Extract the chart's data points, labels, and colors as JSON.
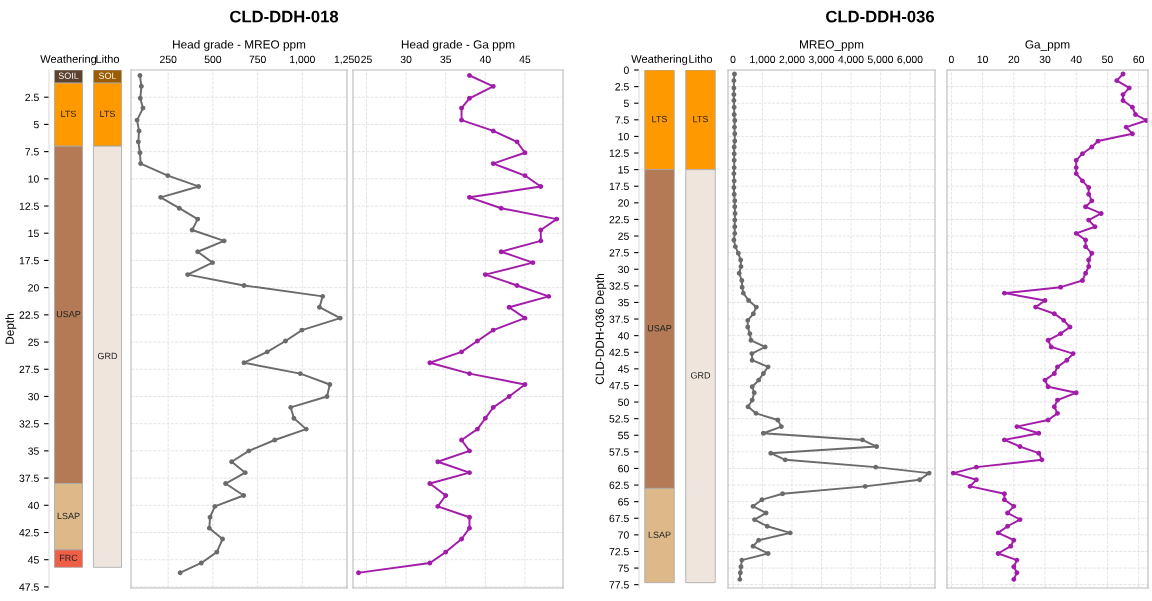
{
  "chart_data": [
    {
      "type": "bar",
      "stacked": true,
      "ylabel": "Depth",
      "categories": [
        "Weathering",
        "Litho"
      ],
      "ylim": [
        47.6,
        0
      ],
      "yticks": [
        2.5,
        5,
        7.5,
        10,
        12.5,
        15,
        17.5,
        20,
        22.5,
        25,
        27.5,
        30,
        32.5,
        35,
        37.5,
        40,
        42.5,
        45,
        47.5
      ],
      "series": [
        {
          "name": "SOIL",
          "color": "#5c4330",
          "values": [
            1.2,
            null
          ]
        },
        {
          "name": "SOL",
          "color": "#9c5c00",
          "values": [
            null,
            1.2
          ]
        },
        {
          "name": "LTS",
          "color": "#ff9900",
          "values": [
            5.8,
            5.8
          ]
        },
        {
          "name": "USAP",
          "color": "#b47a55",
          "values": [
            31,
            null
          ]
        },
        {
          "name": "GRD",
          "color": "#efe5df",
          "values": [
            null,
            38.7
          ]
        },
        {
          "name": "LSAP",
          "color": "#ddb98a",
          "values": [
            6.1,
            null
          ]
        },
        {
          "name": "FRC",
          "color": "#ef5f45",
          "values": [
            1.6,
            null
          ]
        }
      ]
    },
    {
      "type": "line",
      "orientation": "horizontal",
      "title": "CLD-DDH-018",
      "xlabel": "Head grade - MREO ppm",
      "xlim": [
        42,
        1250
      ],
      "xticks": [
        250,
        500,
        750,
        {
          "value": 1000,
          "label": "1,000"
        },
        {
          "value": 1250,
          "label": "1,250"
        }
      ],
      "ylim": [
        47.6,
        0
      ],
      "yticks": [
        2.5,
        5,
        7.5,
        10,
        12.5,
        15,
        17.5,
        20,
        22.5,
        25,
        27.5,
        30,
        32.5,
        35,
        37.5,
        40,
        42.5,
        45,
        47.5
      ],
      "tick_labels": "x",
      "grid": true,
      "marker": "circle",
      "line_style": "solid",
      "series": [
        {
          "color": "#6b6b6b",
          "x": [
            0.5,
            1.5,
            2.6,
            3.5,
            4.6,
            5.6,
            6.6,
            7.6,
            8.6,
            9.7,
            10.7,
            11.7,
            12.7,
            13.7,
            14.7,
            15.7,
            16.7,
            17.7,
            18.8,
            19.8,
            20.8,
            21.8,
            22.8,
            23.9,
            24.9,
            25.9,
            26.9,
            27.9,
            28.9,
            30.0,
            31.0,
            32.0,
            33.0,
            34.0,
            35.0,
            36.0,
            37.0,
            38.0,
            39.1,
            40.1,
            41.1,
            42.1,
            43.1,
            44.3,
            45.3,
            46.2
          ],
          "values": [
            92,
            100,
            94,
            109,
            76,
            87,
            83,
            92,
            96,
            248,
            420,
            208,
            312,
            415,
            384,
            563,
            415,
            498,
            359,
            674,
            1114,
            1096,
            1212,
            998,
            906,
            804,
            674,
            989,
            1154,
            1138,
            935,
            953,
            1022,
            846,
            701,
            605,
            681,
            571,
            672,
            511,
            484,
            480,
            554,
            522,
            435,
            317
          ]
        }
      ]
    },
    {
      "type": "line",
      "orientation": "horizontal",
      "xlabel": "Head grade - Ga ppm",
      "xlim": [
        23.3,
        49.8
      ],
      "xticks": [
        25,
        30,
        35,
        40,
        45
      ],
      "ylim": [
        47.6,
        0
      ],
      "yticks": [
        2.5,
        5,
        7.5,
        10,
        12.5,
        15,
        17.5,
        20,
        22.5,
        25,
        27.5,
        30,
        32.5,
        35,
        37.5,
        40,
        42.5,
        45,
        47.5
      ],
      "tick_labels": "x",
      "grid": true,
      "marker": "circle",
      "line_style": "solid",
      "series": [
        {
          "color": "#a21caa",
          "x": [
            0.5,
            1.5,
            2.6,
            3.5,
            4.6,
            5.6,
            6.6,
            7.6,
            8.6,
            9.7,
            10.7,
            11.7,
            12.7,
            13.7,
            14.7,
            15.7,
            16.7,
            17.7,
            18.8,
            19.8,
            20.8,
            21.8,
            22.8,
            23.9,
            24.9,
            25.9,
            26.9,
            27.9,
            28.9,
            30.0,
            31.0,
            32.0,
            33.0,
            34.0,
            35.0,
            36.0,
            37.0,
            38.0,
            39.1,
            40.1,
            41.1,
            42.1,
            43.1,
            44.3,
            45.3,
            46.2
          ],
          "values": [
            38,
            41,
            38,
            37,
            37,
            41,
            44,
            45,
            41,
            45,
            47,
            38,
            42,
            49,
            47,
            47,
            42,
            46,
            40,
            44,
            48,
            43,
            45,
            41,
            39,
            37,
            33,
            38,
            45,
            43,
            41,
            40,
            39,
            37,
            38,
            34,
            38,
            33,
            35,
            34,
            38,
            38,
            37,
            35,
            33,
            24
          ]
        }
      ]
    },
    {
      "type": "bar",
      "stacked": true,
      "ylabel": "CLD-DDH-036 Depth",
      "categories": [
        "Weathering",
        "Litho"
      ],
      "ylim": [
        78,
        0
      ],
      "yticks": [
        0,
        2.5,
        5,
        7.5,
        10,
        12.5,
        15,
        17.5,
        20,
        22.5,
        25,
        27.5,
        30,
        32.5,
        35,
        37.5,
        40,
        42.5,
        45,
        47.5,
        50,
        52.5,
        55,
        57.5,
        60,
        62.5,
        65,
        67.5,
        70,
        72.5,
        75,
        77.5
      ],
      "series": [
        {
          "name": "LTS",
          "color": "#ff9900",
          "values": [
            15,
            15
          ]
        },
        {
          "name": "USAP",
          "color": "#b47a55",
          "values": [
            48,
            null
          ]
        },
        {
          "name": "GRD",
          "color": "#efe5df",
          "values": [
            null,
            62.2
          ]
        },
        {
          "name": "LSAP",
          "color": "#ddb98a",
          "values": [
            14.2,
            null
          ]
        }
      ]
    },
    {
      "type": "line",
      "orientation": "horizontal",
      "title": "CLD-DDH-036",
      "xlabel": "MREO_ppm",
      "xlim": [
        -170,
        6850
      ],
      "xticks": [
        0,
        {
          "value": 1000,
          "label": "1,000"
        },
        {
          "value": 2000,
          "label": "2,000"
        },
        {
          "value": 3000,
          "label": "3,000"
        },
        {
          "value": 4000,
          "label": "4,000"
        },
        {
          "value": 5000,
          "label": "5,000"
        },
        {
          "value": 6000,
          "label": "6,000"
        }
      ],
      "ylim": [
        78,
        0
      ],
      "yticks": [
        0,
        2.5,
        5,
        7.5,
        10,
        12.5,
        15,
        17.5,
        20,
        22.5,
        25,
        27.5,
        30,
        32.5,
        35,
        37.5,
        40,
        42.5,
        45,
        47.5,
        50,
        52.5,
        55,
        57.5,
        60,
        62.5,
        65,
        67.5,
        70,
        72.5,
        75,
        77.5
      ],
      "tick_labels": "x",
      "grid": true,
      "marker": "circle",
      "line_style": "solid",
      "series": [
        {
          "color": "#6b6b6b",
          "x": [
            0.6,
            1.6,
            2.7,
            3.7,
            4.6,
            5.6,
            6.7,
            7.6,
            8.6,
            9.6,
            10.7,
            11.6,
            12.6,
            13.6,
            14.7,
            15.6,
            16.7,
            17.7,
            18.7,
            19.7,
            20.6,
            21.6,
            22.6,
            23.6,
            24.6,
            25.6,
            26.6,
            27.6,
            28.6,
            29.6,
            30.6,
            31.7,
            32.7,
            33.6,
            34.7,
            35.7,
            36.7,
            37.7,
            38.7,
            39.7,
            40.7,
            41.7,
            42.7,
            43.7,
            44.7,
            45.7,
            46.7,
            47.7,
            48.6,
            49.7,
            50.7,
            51.7,
            52.7,
            53.7,
            54.7,
            55.7,
            56.7,
            57.7,
            58.7,
            59.8,
            60.7,
            61.7,
            62.7,
            63.8,
            64.7,
            65.7,
            66.7,
            67.7,
            68.7,
            69.7,
            70.8,
            71.7,
            72.8,
            73.8,
            74.8,
            75.7,
            76.7
          ],
          "values": [
            50,
            30,
            30,
            30,
            30,
            40,
            40,
            60,
            50,
            60,
            60,
            40,
            40,
            40,
            40,
            30,
            40,
            30,
            40,
            60,
            60,
            70,
            60,
            60,
            60,
            30,
            80,
            180,
            260,
            270,
            210,
            300,
            310,
            350,
            530,
            790,
            690,
            500,
            500,
            570,
            610,
            1090,
            640,
            650,
            1190,
            1030,
            870,
            650,
            720,
            650,
            510,
            780,
            1520,
            1640,
            1030,
            4390,
            4870,
            1280,
            1770,
            4840,
            6650,
            6330,
            4480,
            1680,
            980,
            680,
            1120,
            730,
            1160,
            1940,
            870,
            680,
            1190,
            300,
            270,
            250,
            230
          ]
        }
      ]
    },
    {
      "type": "line",
      "orientation": "horizontal",
      "xlabel": "Ga_ppm",
      "xlim": [
        -1.4,
        63
      ],
      "xticks": [
        0,
        10,
        20,
        30,
        40,
        50,
        60
      ],
      "ylim": [
        78,
        0
      ],
      "yticks": [
        0,
        2.5,
        5,
        7.5,
        10,
        12.5,
        15,
        17.5,
        20,
        22.5,
        25,
        27.5,
        30,
        32.5,
        35,
        37.5,
        40,
        42.5,
        45,
        47.5,
        50,
        52.5,
        55,
        57.5,
        60,
        62.5,
        65,
        67.5,
        70,
        72.5,
        75,
        77.5
      ],
      "tick_labels": "x",
      "grid": true,
      "marker": "circle",
      "line_style": "solid",
      "series": [
        {
          "color": "#a21caa",
          "x": [
            0.6,
            1.6,
            2.7,
            3.7,
            4.6,
            5.6,
            6.7,
            7.6,
            8.6,
            9.6,
            10.7,
            11.6,
            12.6,
            13.6,
            14.7,
            15.6,
            16.7,
            17.7,
            18.7,
            19.7,
            20.6,
            21.6,
            22.6,
            23.6,
            24.6,
            25.6,
            26.6,
            27.6,
            28.6,
            29.6,
            30.6,
            31.7,
            32.7,
            33.6,
            34.7,
            35.7,
            36.7,
            37.7,
            38.7,
            39.7,
            40.7,
            41.7,
            42.7,
            43.7,
            44.7,
            45.7,
            46.7,
            47.7,
            48.6,
            49.7,
            50.7,
            51.7,
            52.7,
            53.7,
            54.7,
            55.7,
            56.7,
            57.7,
            58.7,
            59.8,
            60.7,
            61.7,
            62.7,
            63.8,
            64.7,
            65.7,
            66.7,
            67.7,
            68.7,
            69.7,
            70.8,
            71.7,
            72.8,
            73.8,
            74.8,
            75.7,
            76.7
          ],
          "values": [
            55,
            53,
            57,
            55,
            55,
            58,
            59,
            62.5,
            56,
            58,
            47,
            45,
            42,
            40,
            40,
            40,
            42,
            44,
            44,
            45,
            43,
            48,
            44,
            46,
            40,
            43,
            43,
            45,
            44,
            44,
            43,
            42,
            35,
            17,
            30,
            27,
            33,
            36,
            38,
            35,
            31,
            32,
            39,
            37,
            34,
            33,
            30,
            31,
            40,
            34,
            33,
            34,
            31,
            21,
            28,
            17,
            22,
            28,
            29,
            8,
            0.6,
            8,
            6,
            17,
            17,
            20,
            18,
            22,
            18,
            15,
            20,
            19,
            15,
            21,
            20,
            21,
            20
          ]
        }
      ]
    }
  ]
}
